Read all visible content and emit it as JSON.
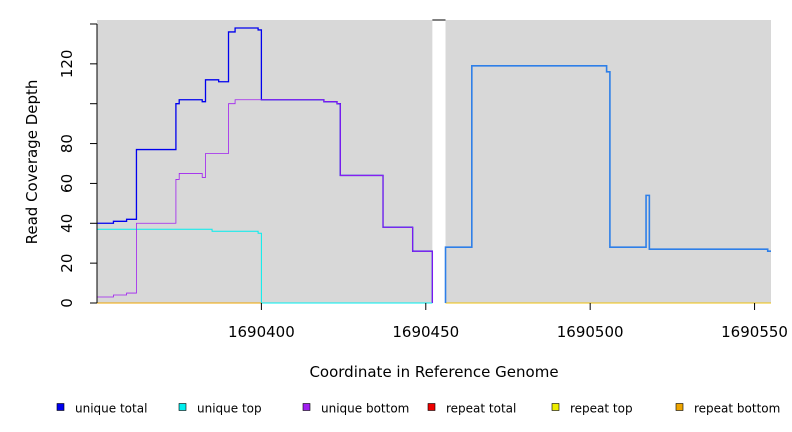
{
  "chart_data": {
    "type": "line",
    "xlabel": "Coordinate in Reference Genome",
    "ylabel": "Read Coverage Depth",
    "xlim": [
      1690350,
      1690555
    ],
    "ylim": [
      0,
      142
    ],
    "x_ticks": [
      1690400,
      1690450,
      1690500,
      1690550
    ],
    "x_tick_labels": [
      "1690400",
      "1690450",
      "1690500",
      "1690550"
    ],
    "y_ticks": [
      0,
      20,
      40,
      60,
      80,
      100,
      120,
      140
    ],
    "y_tick_labels": [
      "0",
      "20",
      "40",
      "60",
      "80",
      "",
      "120",
      ""
    ],
    "panel_background": "#d8d8d8",
    "gap": [
      1690452,
      1690456
    ],
    "series": [
      {
        "name": "unique total",
        "color": "#0000ee",
        "width": 1.3,
        "points": [
          [
            1690350,
            40
          ],
          [
            1690355,
            40
          ],
          [
            1690355,
            41
          ],
          [
            1690359,
            41
          ],
          [
            1690359,
            42
          ],
          [
            1690362,
            42
          ],
          [
            1690362,
            77
          ],
          [
            1690374,
            77
          ],
          [
            1690374,
            100
          ],
          [
            1690375,
            100
          ],
          [
            1690375,
            102
          ],
          [
            1690382,
            102
          ],
          [
            1690382,
            101
          ],
          [
            1690383,
            101
          ],
          [
            1690383,
            112
          ],
          [
            1690387,
            112
          ],
          [
            1690387,
            111
          ],
          [
            1690390,
            111
          ],
          [
            1690390,
            136
          ],
          [
            1690392,
            136
          ],
          [
            1690392,
            138
          ],
          [
            1690399,
            138
          ],
          [
            1690399,
            137
          ],
          [
            1690400,
            137
          ],
          [
            1690400,
            102
          ],
          [
            1690419,
            102
          ],
          [
            1690419,
            101
          ],
          [
            1690423,
            101
          ],
          [
            1690423,
            100
          ],
          [
            1690424,
            100
          ],
          [
            1690424,
            64
          ],
          [
            1690437,
            64
          ],
          [
            1690437,
            38
          ],
          [
            1690446,
            38
          ],
          [
            1690446,
            26
          ],
          [
            1690452,
            26
          ],
          [
            1690452,
            0
          ]
        ]
      },
      {
        "name": "unique top",
        "color": "#00eeee",
        "width": 1.0,
        "points": [
          [
            1690350,
            37
          ],
          [
            1690385,
            37
          ],
          [
            1690385,
            36
          ],
          [
            1690399,
            36
          ],
          [
            1690399,
            35
          ],
          [
            1690400,
            35
          ],
          [
            1690400,
            0
          ],
          [
            1690452,
            0
          ]
        ]
      },
      {
        "name": "unique bottom",
        "color": "#a020f0",
        "width": 0.8,
        "points": [
          [
            1690350,
            3
          ],
          [
            1690355,
            3
          ],
          [
            1690355,
            4
          ],
          [
            1690359,
            4
          ],
          [
            1690359,
            5
          ],
          [
            1690362,
            5
          ],
          [
            1690362,
            40
          ],
          [
            1690374,
            40
          ],
          [
            1690374,
            62
          ],
          [
            1690375,
            62
          ],
          [
            1690375,
            65
          ],
          [
            1690382,
            65
          ],
          [
            1690382,
            63
          ],
          [
            1690383,
            63
          ],
          [
            1690383,
            75
          ],
          [
            1690390,
            75
          ],
          [
            1690390,
            100
          ],
          [
            1690392,
            100
          ],
          [
            1690392,
            102
          ],
          [
            1690400,
            102
          ],
          [
            1690419,
            102
          ],
          [
            1690419,
            101
          ],
          [
            1690423,
            101
          ],
          [
            1690423,
            100
          ],
          [
            1690424,
            100
          ],
          [
            1690424,
            64
          ],
          [
            1690437,
            64
          ],
          [
            1690437,
            38
          ],
          [
            1690446,
            38
          ],
          [
            1690446,
            26
          ],
          [
            1690452,
            26
          ],
          [
            1690452,
            0
          ]
        ]
      },
      {
        "name": "repeat total",
        "color": "#ee0000",
        "width": 0.8,
        "points": [
          [
            1690456,
            0
          ],
          [
            1690555,
            0
          ]
        ]
      },
      {
        "name": "repeat top",
        "color": "#eeee00",
        "width": 0.8,
        "points": [
          [
            1690456,
            0
          ],
          [
            1690555,
            0
          ]
        ]
      },
      {
        "name": "repeat bottom",
        "color": "#eea500",
        "width": 1.0,
        "points": [
          [
            1690350,
            0
          ],
          [
            1690400,
            0
          ]
        ]
      },
      {
        "name": "",
        "color": "#2e7fe8",
        "width": 1.6,
        "points": [
          [
            1690456,
            0
          ],
          [
            1690456,
            28
          ],
          [
            1690464,
            28
          ],
          [
            1690464,
            119
          ],
          [
            1690505,
            119
          ],
          [
            1690505,
            116
          ],
          [
            1690506,
            116
          ],
          [
            1690506,
            28
          ],
          [
            1690517,
            28
          ],
          [
            1690517,
            54
          ],
          [
            1690518,
            54
          ],
          [
            1690518,
            27
          ],
          [
            1690554,
            27
          ],
          [
            1690554,
            26
          ],
          [
            1690555,
            26
          ]
        ]
      }
    ],
    "legend": {
      "placement": "bottom",
      "entries": [
        {
          "label": "unique total",
          "color": "#0000ee"
        },
        {
          "label": "unique top",
          "color": "#00eeee"
        },
        {
          "label": "unique bottom",
          "color": "#a020f0"
        },
        {
          "label": "repeat total",
          "color": "#ee0000"
        },
        {
          "label": "repeat top",
          "color": "#eeee00"
        },
        {
          "label": "repeat bottom",
          "color": "#eea500"
        }
      ]
    }
  }
}
